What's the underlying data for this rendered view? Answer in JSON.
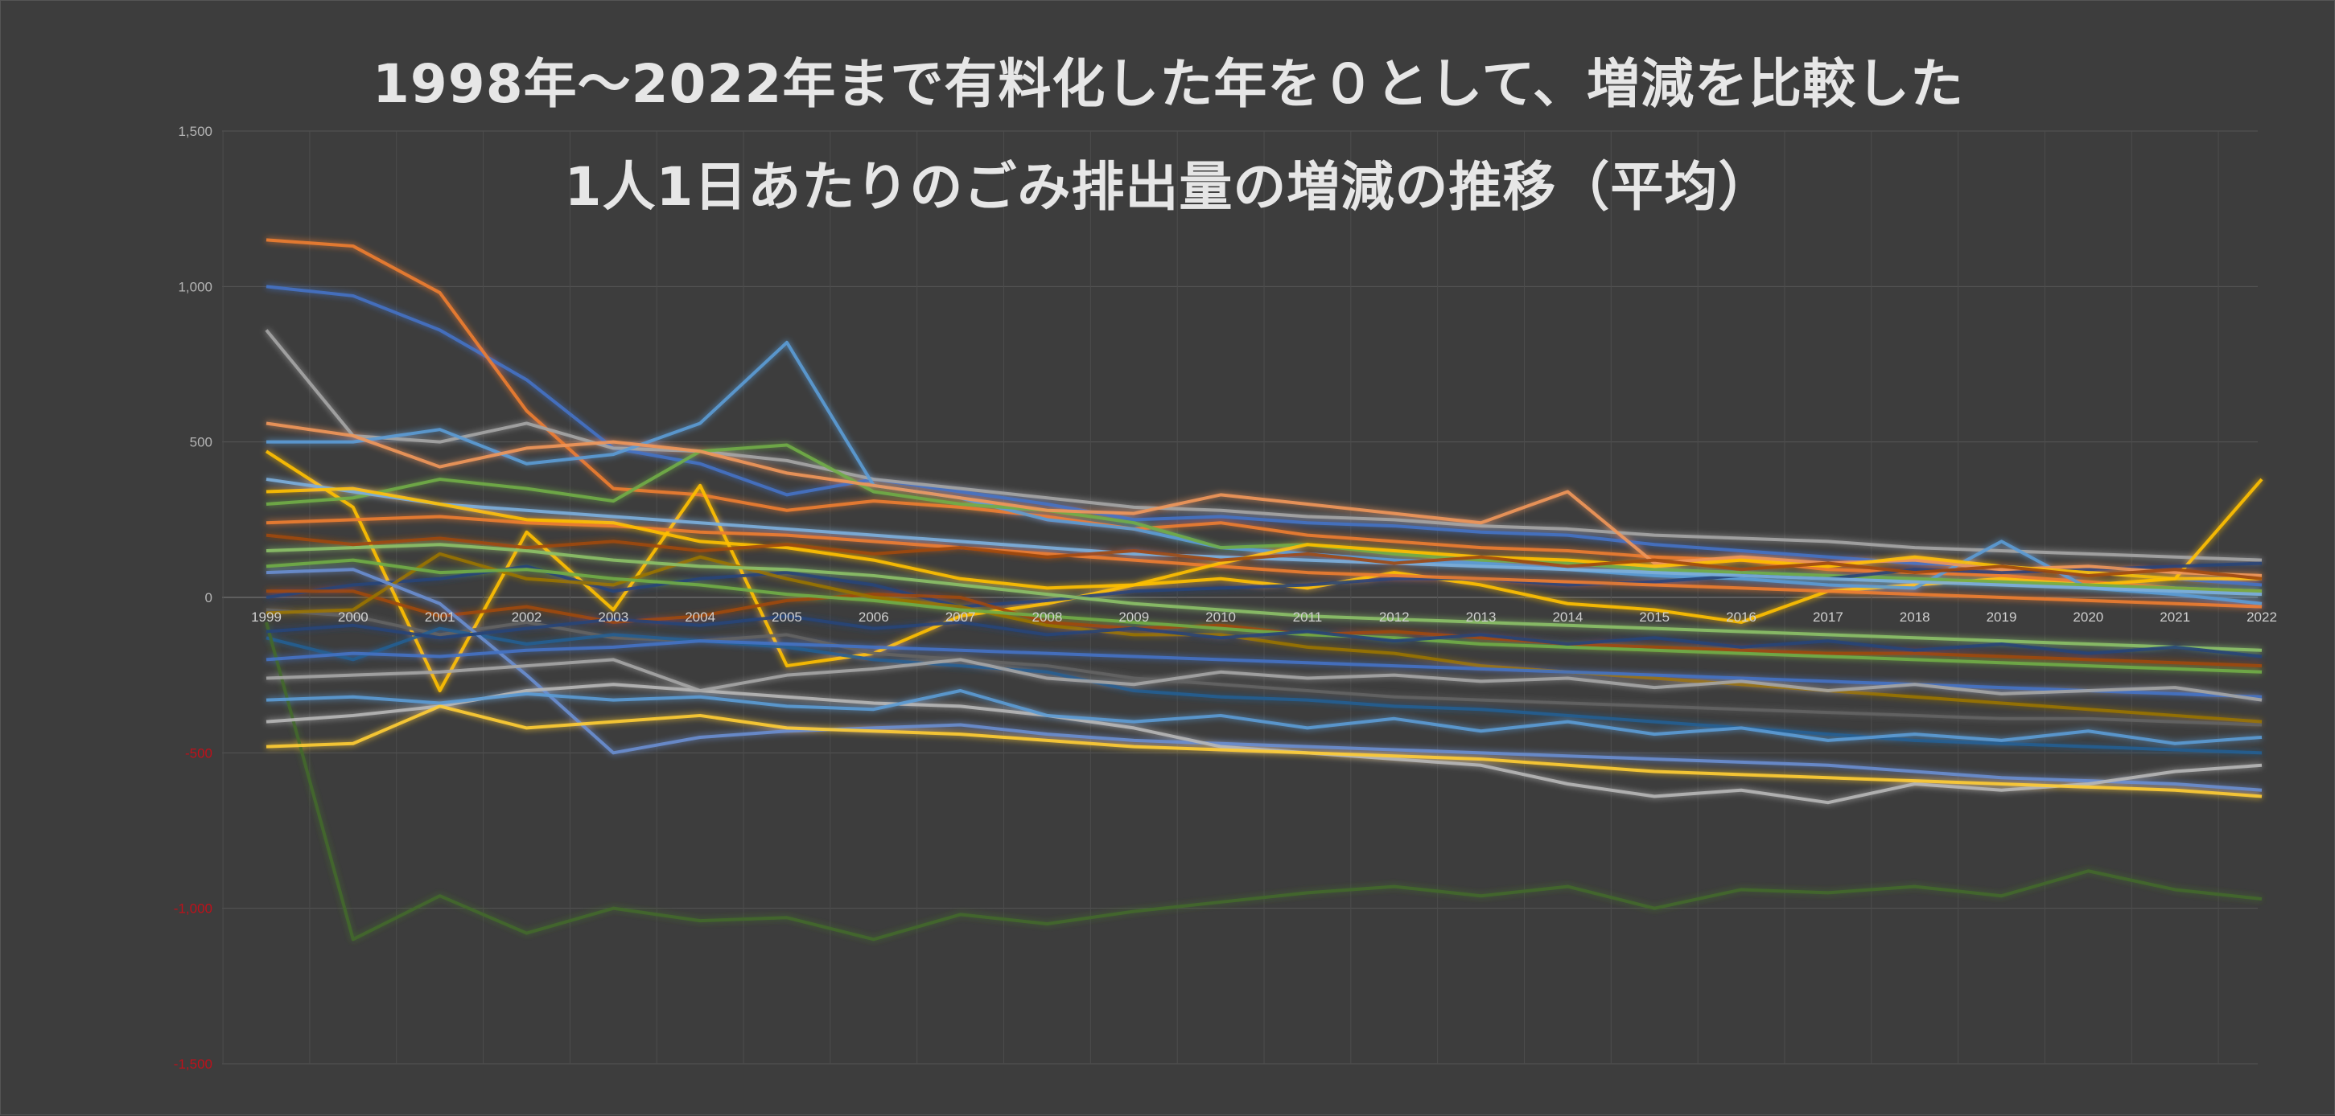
{
  "chart_data": {
    "type": "line",
    "title_line1": "1998年～2022年まで有料化した年を０として、増減を比較した",
    "title_line2": "1人1日あたりのごみ排出量の増減の推移（平均）",
    "xlabel": "",
    "ylabel": "",
    "categories": [
      "1999",
      "2000",
      "2001",
      "2002",
      "2003",
      "2004",
      "2005",
      "2006",
      "2007",
      "2008",
      "2009",
      "2010",
      "2011",
      "2012",
      "2013",
      "2014",
      "2015",
      "2016",
      "2017",
      "2018",
      "2019",
      "2020",
      "2021",
      "2022"
    ],
    "ylim": [
      -1500,
      1500
    ],
    "y_ticks": [
      1500,
      1000,
      500,
      0,
      -500,
      -1000,
      -1500
    ],
    "y_tick_labels": [
      "1,500",
      "1,000",
      "500",
      "0",
      "-500",
      "-1,000",
      "-1,500"
    ],
    "negative_tick_color": "#c0101a",
    "grid": true,
    "line_glow": true,
    "legend": "none",
    "colors": [
      "#4472c4",
      "#ed7d31",
      "#a5a5a5",
      "#ffc000",
      "#5b9bd5",
      "#70ad47",
      "#264478",
      "#9e480e",
      "#636363",
      "#997300",
      "#255e91",
      "#43682b",
      "#698ed0",
      "#f1975a",
      "#b7b7b7",
      "#ffcd33",
      "#7cafdd",
      "#8cc168"
    ],
    "background_color": "#3d3d3d",
    "series": [
      {
        "values": [
          1000,
          970,
          860,
          700,
          480,
          430,
          330,
          380,
          340,
          300,
          250,
          260,
          240,
          230,
          210,
          200,
          170,
          150,
          130,
          110,
          100,
          80,
          60,
          40
        ]
      },
      {
        "values": [
          1150,
          1130,
          980,
          600,
          350,
          330,
          280,
          310,
          290,
          260,
          220,
          240,
          200,
          180,
          160,
          150,
          130,
          120,
          90,
          80,
          70,
          50,
          30,
          20
        ]
      },
      {
        "values": [
          860,
          520,
          500,
          560,
          480,
          470,
          440,
          380,
          350,
          320,
          290,
          280,
          260,
          250,
          230,
          220,
          200,
          190,
          180,
          160,
          150,
          140,
          130,
          120
        ]
      },
      {
        "values": [
          470,
          290,
          -300,
          210,
          -40,
          360,
          -220,
          -180,
          -60,
          -20,
          40,
          60,
          30,
          80,
          40,
          -20,
          -40,
          -80,
          20,
          40,
          60,
          40,
          60,
          380
        ]
      },
      {
        "values": [
          500,
          500,
          540,
          430,
          460,
          560,
          820,
          360,
          320,
          250,
          220,
          160,
          140,
          120,
          110,
          90,
          70,
          60,
          40,
          30,
          180,
          30,
          10,
          -20
        ]
      },
      {
        "values": [
          300,
          320,
          380,
          350,
          310,
          470,
          490,
          340,
          300,
          280,
          240,
          160,
          170,
          140,
          120,
          110,
          90,
          80,
          70,
          60,
          50,
          40,
          30,
          20
        ]
      },
      {
        "values": [
          0,
          40,
          60,
          100,
          20,
          60,
          80,
          40,
          -30,
          -10,
          20,
          30,
          40,
          60,
          60,
          40,
          50,
          70,
          60,
          90,
          80,
          90,
          100,
          110
        ]
      },
      {
        "values": [
          20,
          20,
          -60,
          -30,
          -80,
          -60,
          -10,
          10,
          0,
          -80,
          -100,
          -90,
          -120,
          -110,
          -130,
          -150,
          -160,
          -170,
          -180,
          -180,
          -190,
          -200,
          -210,
          -220
        ]
      },
      {
        "values": [
          -40,
          -60,
          -120,
          -80,
          -130,
          -140,
          -120,
          -180,
          -200,
          -220,
          -260,
          -280,
          -300,
          -320,
          -330,
          -340,
          -350,
          -360,
          -370,
          -380,
          -390,
          -390,
          -400,
          -410
        ]
      },
      {
        "values": [
          -50,
          -40,
          140,
          60,
          40,
          130,
          60,
          0,
          -30,
          -90,
          -120,
          -120,
          -160,
          -180,
          -220,
          -240,
          -260,
          -280,
          -300,
          -320,
          -340,
          -360,
          -380,
          -400
        ]
      },
      {
        "values": [
          -130,
          -200,
          -100,
          -150,
          -120,
          -140,
          -160,
          -200,
          -220,
          -240,
          -300,
          -320,
          -330,
          -350,
          -360,
          -380,
          -400,
          -420,
          -440,
          -460,
          -470,
          -480,
          -490,
          -500
        ]
      },
      {
        "values": [
          -80,
          -1100,
          -960,
          -1080,
          -1000,
          -1040,
          -1030,
          -1100,
          -1020,
          -1050,
          -1010,
          -980,
          -950,
          -930,
          -960,
          -930,
          -1000,
          -940,
          -950,
          -930,
          -960,
          -880,
          -940,
          -970
        ]
      },
      {
        "values": [
          80,
          90,
          -20,
          -250,
          -500,
          -450,
          -430,
          -420,
          -410,
          -440,
          -460,
          -470,
          -480,
          -490,
          -500,
          -510,
          -520,
          -530,
          -540,
          -560,
          -580,
          -590,
          -600,
          -620
        ]
      },
      {
        "values": [
          560,
          520,
          420,
          480,
          500,
          470,
          400,
          360,
          320,
          280,
          270,
          330,
          300,
          270,
          240,
          340,
          110,
          130,
          110,
          120,
          90,
          100,
          80,
          70
        ]
      },
      {
        "values": [
          -400,
          -380,
          -350,
          -300,
          -280,
          -300,
          -320,
          -340,
          -350,
          -380,
          -420,
          -480,
          -500,
          -520,
          -540,
          -600,
          -640,
          -620,
          -660,
          -600,
          -620,
          -600,
          -560,
          -540
        ]
      },
      {
        "values": [
          -480,
          -470,
          -350,
          -420,
          -400,
          -380,
          -420,
          -430,
          -440,
          -460,
          -480,
          -490,
          -500,
          -510,
          -520,
          -540,
          -560,
          -570,
          -580,
          -590,
          -600,
          -610,
          -620,
          -640
        ]
      },
      {
        "values": [
          380,
          340,
          300,
          280,
          260,
          240,
          220,
          200,
          180,
          160,
          140,
          130,
          120,
          110,
          100,
          90,
          80,
          70,
          60,
          50,
          40,
          30,
          20,
          10
        ]
      },
      {
        "values": [
          150,
          160,
          170,
          150,
          120,
          100,
          90,
          70,
          40,
          10,
          -20,
          -40,
          -60,
          -70,
          -80,
          -90,
          -100,
          -110,
          -120,
          -130,
          -140,
          -150,
          -160,
          -170
        ]
      },
      {
        "values": [
          -200,
          -180,
          -190,
          -170,
          -160,
          -140,
          -150,
          -160,
          -170,
          -180,
          -190,
          -200,
          -210,
          -220,
          -230,
          -240,
          -250,
          -260,
          -270,
          -280,
          -290,
          -300,
          -310,
          -320
        ]
      },
      {
        "values": [
          240,
          250,
          260,
          240,
          230,
          210,
          200,
          180,
          160,
          140,
          120,
          100,
          80,
          70,
          60,
          50,
          40,
          30,
          20,
          10,
          0,
          -10,
          -20,
          -30
        ]
      },
      {
        "values": [
          -260,
          -250,
          -240,
          -220,
          -200,
          -300,
          -250,
          -230,
          -200,
          -260,
          -280,
          -240,
          -260,
          -250,
          -270,
          -260,
          -290,
          -270,
          -300,
          -280,
          -310,
          -300,
          -290,
          -330
        ]
      },
      {
        "values": [
          340,
          350,
          300,
          250,
          240,
          180,
          160,
          120,
          60,
          30,
          40,
          110,
          170,
          150,
          130,
          120,
          100,
          120,
          100,
          130,
          100,
          80,
          60,
          60
        ]
      },
      {
        "values": [
          -330,
          -320,
          -340,
          -310,
          -330,
          -320,
          -350,
          -360,
          -300,
          -380,
          -400,
          -380,
          -420,
          -390,
          -430,
          -400,
          -440,
          -420,
          -460,
          -440,
          -460,
          -430,
          -470,
          -450
        ]
      },
      {
        "values": [
          100,
          120,
          80,
          90,
          60,
          40,
          10,
          -10,
          -40,
          -60,
          -80,
          -100,
          -120,
          -130,
          -150,
          -160,
          -170,
          -180,
          -190,
          -200,
          -210,
          -220,
          -230,
          -240
        ]
      },
      {
        "values": [
          -110,
          -90,
          -130,
          -100,
          -70,
          -90,
          -60,
          -100,
          -80,
          -120,
          -100,
          -130,
          -110,
          -140,
          -120,
          -150,
          -130,
          -160,
          -140,
          -170,
          -150,
          -180,
          -160,
          -190
        ]
      },
      {
        "values": [
          200,
          170,
          190,
          160,
          180,
          150,
          170,
          140,
          160,
          130,
          150,
          120,
          140,
          110,
          130,
          100,
          120,
          90,
          110,
          80,
          100,
          70,
          90,
          60
        ]
      }
    ]
  }
}
